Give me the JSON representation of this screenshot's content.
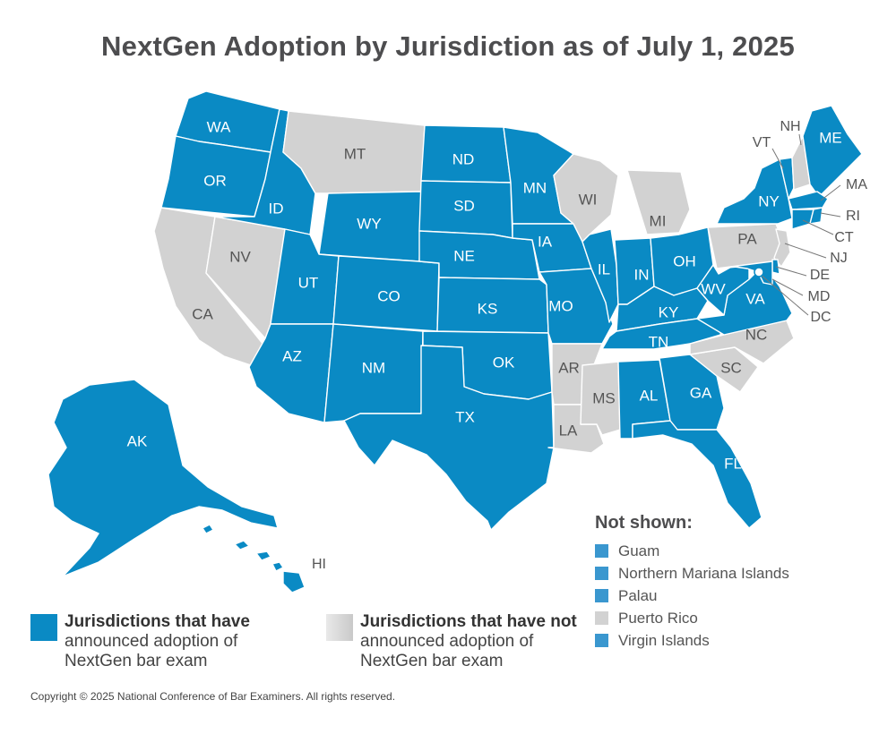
{
  "title": "NextGen Adoption by Jurisdiction as of July 1, 2025",
  "colors": {
    "adopted": "#0a8ac4",
    "not_adopted": "#d2d2d2",
    "adopted_swatch": "#3a97cf"
  },
  "states": [
    {
      "abbr": "WA",
      "adopted": true
    },
    {
      "abbr": "OR",
      "adopted": true
    },
    {
      "abbr": "CA",
      "adopted": false
    },
    {
      "abbr": "NV",
      "adopted": false
    },
    {
      "abbr": "ID",
      "adopted": true
    },
    {
      "abbr": "MT",
      "adopted": false
    },
    {
      "abbr": "WY",
      "adopted": true
    },
    {
      "abbr": "UT",
      "adopted": true
    },
    {
      "abbr": "CO",
      "adopted": true
    },
    {
      "abbr": "AZ",
      "adopted": true
    },
    {
      "abbr": "NM",
      "adopted": true
    },
    {
      "abbr": "ND",
      "adopted": true
    },
    {
      "abbr": "SD",
      "adopted": true
    },
    {
      "abbr": "NE",
      "adopted": true
    },
    {
      "abbr": "KS",
      "adopted": true
    },
    {
      "abbr": "OK",
      "adopted": true
    },
    {
      "abbr": "TX",
      "adopted": true
    },
    {
      "abbr": "MN",
      "adopted": true
    },
    {
      "abbr": "IA",
      "adopted": true
    },
    {
      "abbr": "MO",
      "adopted": true
    },
    {
      "abbr": "AR",
      "adopted": false
    },
    {
      "abbr": "LA",
      "adopted": false
    },
    {
      "abbr": "WI",
      "adopted": false
    },
    {
      "abbr": "IL",
      "adopted": true
    },
    {
      "abbr": "MI",
      "adopted": false
    },
    {
      "abbr": "IN",
      "adopted": true
    },
    {
      "abbr": "OH",
      "adopted": true
    },
    {
      "abbr": "KY",
      "adopted": true
    },
    {
      "abbr": "TN",
      "adopted": true
    },
    {
      "abbr": "MS",
      "adopted": false
    },
    {
      "abbr": "AL",
      "adopted": true
    },
    {
      "abbr": "GA",
      "adopted": true
    },
    {
      "abbr": "FL",
      "adopted": true
    },
    {
      "abbr": "SC",
      "adopted": false
    },
    {
      "abbr": "NC",
      "adopted": false
    },
    {
      "abbr": "VA",
      "adopted": true
    },
    {
      "abbr": "WV",
      "adopted": true
    },
    {
      "abbr": "PA",
      "adopted": false
    },
    {
      "abbr": "NY",
      "adopted": true
    },
    {
      "abbr": "VT",
      "adopted": true
    },
    {
      "abbr": "NH",
      "adopted": false
    },
    {
      "abbr": "ME",
      "adopted": true
    },
    {
      "abbr": "MA",
      "adopted": true
    },
    {
      "abbr": "RI",
      "adopted": true
    },
    {
      "abbr": "CT",
      "adopted": true
    },
    {
      "abbr": "NJ",
      "adopted": false
    },
    {
      "abbr": "DE",
      "adopted": true
    },
    {
      "abbr": "MD",
      "adopted": true
    },
    {
      "abbr": "DC",
      "adopted": true
    },
    {
      "abbr": "AK",
      "adopted": true
    },
    {
      "abbr": "HI",
      "adopted": true
    }
  ],
  "legend": {
    "adopted_bold": "Jurisdictions that have",
    "adopted_line2": "announced adoption of",
    "adopted_line3": "NextGen bar exam",
    "not_bold": "Jurisdictions that have not",
    "not_line2": "announced adoption of",
    "not_line3": "NextGen bar exam"
  },
  "not_shown": {
    "title": "Not shown:",
    "items": [
      {
        "label": "Guam",
        "adopted": true
      },
      {
        "label": "Northern Mariana Islands",
        "adopted": true
      },
      {
        "label": "Palau",
        "adopted": true
      },
      {
        "label": "Puerto Rico",
        "adopted": false
      },
      {
        "label": "Virgin Islands",
        "adopted": true
      }
    ]
  },
  "copyright": "Copyright © 2025 National Conference of Bar Examiners. All rights reserved."
}
